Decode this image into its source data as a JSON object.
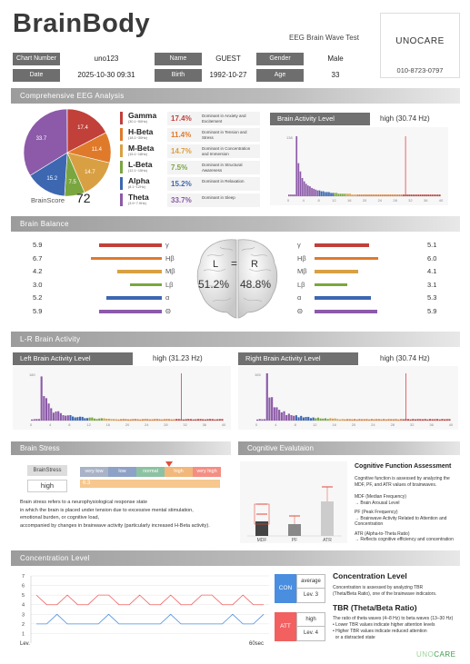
{
  "header": {
    "brand": "BrainBody",
    "subtitle": "EEG Brain Wave Test",
    "company": "UNOCARE",
    "phone": "010-8723-0797",
    "chart_number_label": "Chart Number",
    "chart_number": "uno123",
    "name_label": "Name",
    "name": "GUEST",
    "gender_label": "Gender",
    "gender": "Male",
    "date_label": "Date",
    "date": "2025-10-30 09:31",
    "birth_label": "Birth",
    "birth": "1992-10-27",
    "age_label": "Age",
    "age": "33"
  },
  "eeg": {
    "section": "Comprehensive EEG Analysis",
    "brain_score_label": "BrainScore",
    "brain_score": "72",
    "waves": [
      {
        "name": "Gamma",
        "sub": "(30.1~50Hz)",
        "pct": "17.4%",
        "desc": "Dominant in Anxiety and Excitement",
        "color": "#c1403a"
      },
      {
        "name": "H-Beta",
        "sub": "(18.1~30Hz)",
        "pct": "11.4%",
        "desc": "Dominant in Tension and Stress",
        "color": "#e07a2b"
      },
      {
        "name": "M-Beta",
        "sub": "(15.1~18Hz)",
        "pct": "14.7%",
        "desc": "Dominant in Concentration and Immersion",
        "color": "#d9a043"
      },
      {
        "name": "L-Beta",
        "sub": "(12.1~15Hz)",
        "pct": "7.5%",
        "desc": "Dominant in Structural Awareness",
        "color": "#7aa640"
      },
      {
        "name": "Alpha",
        "sub": "(8.1~12Hz)",
        "pct": "15.2%",
        "desc": "Dominant in Relaxation",
        "color": "#3d67b0"
      },
      {
        "name": "Theta",
        "sub": "(3.9~7.9Hz)",
        "pct": "33.7%",
        "desc": "Dominant in Sleep",
        "color": "#8c5aa8"
      }
    ],
    "activity_label": "Brain Activity Level",
    "activity_value": "high (30.74 Hz)",
    "hist_ymax": "138"
  },
  "pie_labels": [
    "17.4",
    "11.4",
    "14.7",
    "7.5",
    "15.2",
    "33.7"
  ],
  "balance": {
    "section": "Brain Balance",
    "L": "L",
    "R": "R",
    "eq": "=",
    "left_pct": "51.2%",
    "right_pct": "48.8%",
    "rows": [
      {
        "sym": "γ",
        "l": "5.9",
        "r": "5.1",
        "color": "#c1403a",
        "lv": 5.9,
        "rv": 5.1
      },
      {
        "sym": "Hβ",
        "l": "6.7",
        "r": "6.0",
        "color": "#e07a2b",
        "lv": 6.7,
        "rv": 6.0
      },
      {
        "sym": "Mβ",
        "l": "4.2",
        "r": "4.1",
        "color": "#d9a043",
        "lv": 4.2,
        "rv": 4.1
      },
      {
        "sym": "Lβ",
        "l": "3.0",
        "r": "3.1",
        "color": "#7aa640",
        "lv": 3.0,
        "rv": 3.1
      },
      {
        "sym": "α",
        "l": "5.2",
        "r": "5.3",
        "color": "#3d67b0",
        "lv": 5.2,
        "rv": 5.3
      },
      {
        "sym": "Θ",
        "l": "5.9",
        "r": "5.9",
        "color": "#8c5aa8",
        "lv": 5.9,
        "rv": 5.9
      }
    ]
  },
  "lr": {
    "section": "L-R Brain Activity",
    "left_label": "Left Brain Activity Level",
    "left_value": "high (31.23 Hz)",
    "left_ymax": "180",
    "right_label": "Right Brain Activity Level",
    "right_value": "high (30.74 Hz)",
    "right_ymax": "165"
  },
  "axis_ticks": [
    "0",
    "4",
    "8",
    "12",
    "16",
    "20",
    "24",
    "28",
    "32",
    "36",
    "40"
  ],
  "stress": {
    "section": "Brain Stress",
    "label": "BrainStress",
    "value": "high",
    "scale": [
      "very low",
      "low",
      "normal",
      "high",
      "very high"
    ],
    "score": "6.3",
    "text": [
      "Brain stress refers to a neurophysiological response state",
      "in which the brain is placed under tension due to excessive mental stimulation,",
      "emotional burden, or cognitive load,",
      "accompanied by changes in brainwave activity (particularly increased H-Beta activity)."
    ]
  },
  "cognitive": {
    "section": "Cognitive Evalutaion",
    "title": "Cognitive Function Assessment",
    "intro": [
      "Cognitive function is assessed by analyzing the",
      "MDF, PF, and ATR values of brainwaves."
    ],
    "items": [
      [
        "MDF (Median Frequency)",
        "→ Brain Arousal Level"
      ],
      [
        "PF (Peak Frequency)",
        "→ Brainwave Activity Related to Attention and",
        "Concentration"
      ],
      [
        "ATR (Alpha-to-Theta Ratio)",
        "→ Reflects cognitive efficiency and concentration"
      ]
    ],
    "bars": [
      "MDF",
      "PF",
      "ATR"
    ]
  },
  "concentration": {
    "section": "Concentration Level",
    "y_ticks": [
      "7",
      "6",
      "5",
      "4",
      "3",
      "2",
      "1"
    ],
    "x_start": "Lev.",
    "x_end": "60sec",
    "con": "CON",
    "con_level": "average",
    "con_lev": "Lev. 3",
    "att": "ATT",
    "att_level": "high",
    "att_lev": "Lev. 4",
    "title": "Concentration Level",
    "text": [
      "Concentration is assessed by analyzing TBR",
      "(Theta/Beta Ratio), one of the brainwave indicators."
    ],
    "tbr_title": "TBR (Theta/Beta Ratio)",
    "tbr_text": [
      "The ratio of theta waves (4–8 Hz) to beta waves (13–30 Hz)",
      "• Lower TBR values indicate higher attention levels",
      "• Higher TBR values indicate reduced attention",
      "  or a distracted state"
    ],
    "footer_logo_a": "UNO",
    "footer_logo_b": "CARE"
  }
}
